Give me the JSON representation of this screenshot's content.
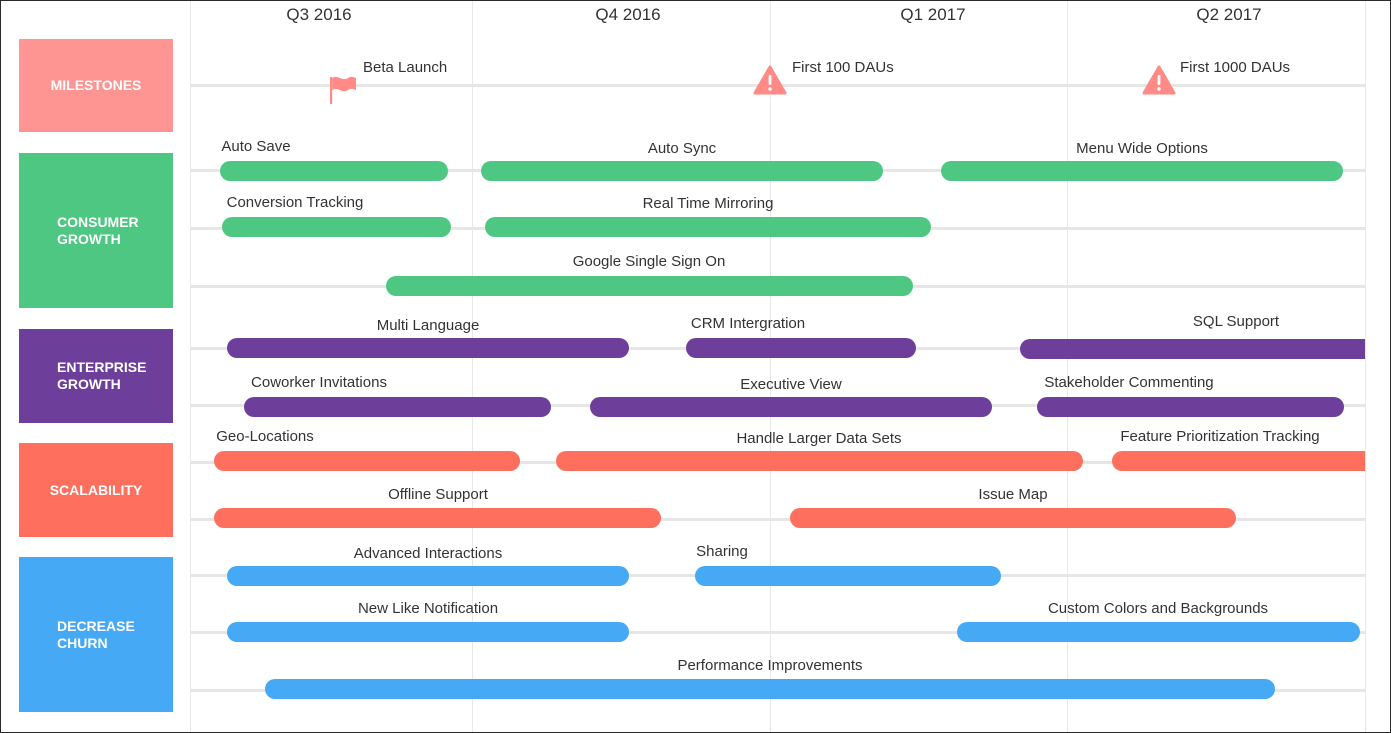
{
  "quarters": [
    "Q3 2016",
    "Q4 2016",
    "Q1 2017",
    "Q2 2017"
  ],
  "categories": [
    {
      "label": "MILESTONES",
      "color": "#ff9592"
    },
    {
      "label": "CONSUMER GROWTH",
      "color": "#4ec783"
    },
    {
      "label": "ENTERPRISE GROWTH",
      "color": "#6d3f9a"
    },
    {
      "label": "SCALABILITY",
      "color": "#fe6f5e"
    },
    {
      "label": "DECREASE CHURN",
      "color": "#45a9f5"
    }
  ],
  "milestones": [
    {
      "label": "Beta Launch",
      "icon": "flag-icon"
    },
    {
      "label": "First 100 DAUs",
      "icon": "warning-icon"
    },
    {
      "label": "First 1000 DAUs",
      "icon": "warning-icon"
    }
  ],
  "tasks": [
    {
      "label": "Auto Save",
      "category": "CONSUMER GROWTH"
    },
    {
      "label": "Auto Sync",
      "category": "CONSUMER GROWTH"
    },
    {
      "label": "Menu Wide Options",
      "category": "CONSUMER GROWTH"
    },
    {
      "label": "Conversion Tracking",
      "category": "CONSUMER GROWTH"
    },
    {
      "label": "Real Time Mirroring",
      "category": "CONSUMER GROWTH"
    },
    {
      "label": "Google Single Sign On",
      "category": "CONSUMER GROWTH"
    },
    {
      "label": "Multi Language",
      "category": "ENTERPRISE GROWTH"
    },
    {
      "label": "CRM Intergration",
      "category": "ENTERPRISE GROWTH"
    },
    {
      "label": "SQL Support",
      "category": "ENTERPRISE GROWTH"
    },
    {
      "label": "Coworker Invitations",
      "category": "ENTERPRISE GROWTH"
    },
    {
      "label": "Executive View",
      "category": "ENTERPRISE GROWTH"
    },
    {
      "label": "Stakeholder Commenting",
      "category": "ENTERPRISE GROWTH"
    },
    {
      "label": "Geo-Locations",
      "category": "SCALABILITY"
    },
    {
      "label": "Handle Larger Data Sets",
      "category": "SCALABILITY"
    },
    {
      "label": "Feature Prioritization Tracking",
      "category": "SCALABILITY"
    },
    {
      "label": "Offline Support",
      "category": "SCALABILITY"
    },
    {
      "label": "Issue Map",
      "category": "SCALABILITY"
    },
    {
      "label": "Advanced Interactions",
      "category": "DECREASE CHURN"
    },
    {
      "label": "Sharing",
      "category": "DECREASE CHURN"
    },
    {
      "label": "New Like Notification",
      "category": "DECREASE CHURN"
    },
    {
      "label": "Custom Colors and Backgrounds",
      "category": "DECREASE CHURN"
    },
    {
      "label": "Performance Improvements",
      "category": "DECREASE CHURN"
    }
  ]
}
